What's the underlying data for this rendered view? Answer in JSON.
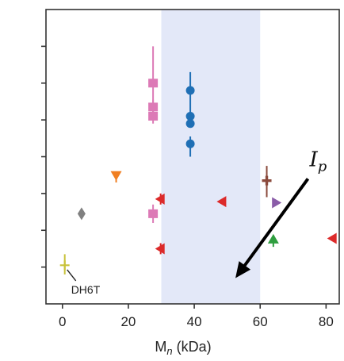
{
  "chart_data": {
    "type": "scatter",
    "xlabel_main": "M",
    "xlabel_sub": "n",
    "xlabel_rest": " (kDa)",
    "xlim": [
      -5,
      84
    ],
    "ylim": [
      0,
      8
    ],
    "xticks": [
      0,
      20,
      40,
      60,
      80
    ],
    "yticks": [
      1,
      2,
      3,
      4,
      5,
      6,
      7
    ],
    "grid": false,
    "shaded_band": {
      "x_from": 30,
      "x_to": 60,
      "color": "#e3e8f8"
    },
    "annotation": {
      "text": "DH6T",
      "points_to": {
        "x": 0.7,
        "y": 1.1
      }
    },
    "arrow": {
      "label_main": "I",
      "label_sub": "p",
      "from": {
        "x": 74.5,
        "y": 3.4
      },
      "to": {
        "x": 52.5,
        "y": 0.7
      }
    },
    "points": [
      {
        "x": 0.7,
        "y": 1.05,
        "marker": "plus",
        "color": "#c8c23a",
        "err_low": 0.25,
        "err_high": 0.3
      },
      {
        "x": 5.8,
        "y": 2.45,
        "marker": "diamond",
        "color": "#808080"
      },
      {
        "x": 16.3,
        "y": 3.5,
        "marker": "triangle-down",
        "color": "#f07f22",
        "err_low": 0.2,
        "err_high": 0.1
      },
      {
        "x": 27.5,
        "y": 6.0,
        "marker": "square",
        "color": "#dc7ab6",
        "err_low": 0.9,
        "err_high": 1.0
      },
      {
        "x": 27.5,
        "y": 5.35,
        "marker": "square",
        "color": "#dc7ab6",
        "err_low": 0.2,
        "err_high": 0.2
      },
      {
        "x": 27.5,
        "y": 5.1,
        "marker": "square",
        "color": "#dc7ab6",
        "err_low": 0.2,
        "err_high": 0.2
      },
      {
        "x": 27.5,
        "y": 2.45,
        "marker": "square",
        "color": "#dc7ab6",
        "err_low": 0.25,
        "err_high": 0.25
      },
      {
        "x": 29.8,
        "y": 2.85,
        "marker": "triangle-left",
        "color": "#dc2a2a",
        "err_low": 0.15,
        "err_high": 0.15
      },
      {
        "x": 29.8,
        "y": 1.5,
        "marker": "triangle-left",
        "color": "#dc2a2a",
        "err_low": 0.15,
        "err_high": 0.15
      },
      {
        "x": 38.8,
        "y": 5.8,
        "marker": "circle",
        "color": "#1f6fb5",
        "err_low": 0.9,
        "err_high": 0.5
      },
      {
        "x": 38.8,
        "y": 5.1,
        "marker": "circle",
        "color": "#1f6fb5"
      },
      {
        "x": 38.8,
        "y": 4.9,
        "marker": "circle",
        "color": "#1f6fb5"
      },
      {
        "x": 38.8,
        "y": 4.35,
        "marker": "circle",
        "color": "#1f6fb5",
        "err_low": 0.35,
        "err_high": 0.2
      },
      {
        "x": 48.5,
        "y": 2.78,
        "marker": "triangle-left",
        "color": "#dc2a2a"
      },
      {
        "x": 62.0,
        "y": 3.35,
        "marker": "plus-thick",
        "color": "#8b4a3c",
        "err_low": 0.45,
        "err_high": 0.4
      },
      {
        "x": 64.8,
        "y": 2.75,
        "marker": "triangle-right",
        "color": "#8a5ca8"
      },
      {
        "x": 64.0,
        "y": 1.75,
        "marker": "triangle-up",
        "color": "#2f9e3f",
        "err_low": 0.2,
        "err_high": 0.1
      },
      {
        "x": 82.0,
        "y": 1.78,
        "marker": "triangle-left",
        "color": "#dc2a2a"
      }
    ]
  }
}
